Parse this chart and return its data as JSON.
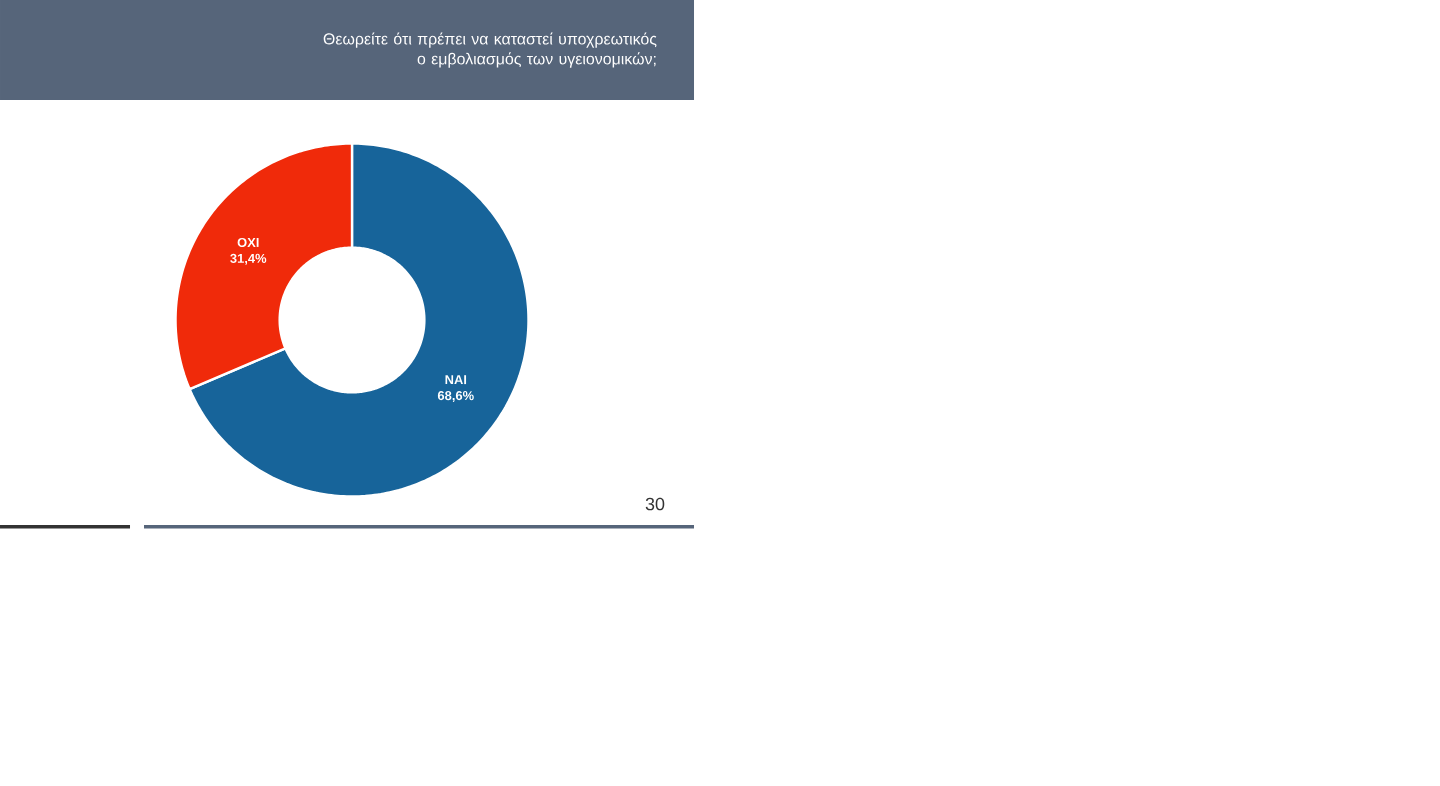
{
  "chart_data": {
    "type": "donut",
    "title": "Θεωρείτε ότι πρέπει να καταστεί υποχρεωτικός ο εμβολιασμός των υγειονομικών;",
    "categories": [
      "ΝΑΙ",
      "ΟΧΙ"
    ],
    "values": [
      68.6,
      31.4
    ],
    "value_labels": [
      "68,6%",
      "31,4%"
    ],
    "colors": [
      "#17649a",
      "#f02a0a"
    ],
    "annotations": [
      "30"
    ]
  }
}
